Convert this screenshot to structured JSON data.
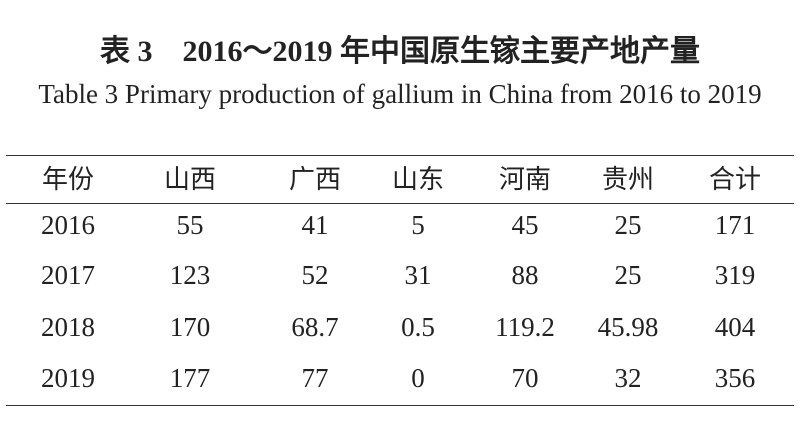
{
  "title_cn": "表 3　2016～2019 年中国原生镓主要产地产量",
  "title_en": "Table 3  Primary production of gallium in China from 2016 to 2019",
  "table": {
    "header": [
      "年份",
      "山西",
      "广西",
      "山东",
      "河南",
      "贵州",
      "合计"
    ],
    "rows": [
      [
        "2016",
        "55",
        "41",
        "5",
        "45",
        "25",
        "171"
      ],
      [
        "2017",
        "123",
        "52",
        "31",
        "88",
        "25",
        "319"
      ],
      [
        "2018",
        "170",
        "68.7",
        "0.5",
        "119.2",
        "45.98",
        "404"
      ],
      [
        "2019",
        "177",
        "77",
        "0",
        "70",
        "32",
        "356"
      ]
    ]
  }
}
